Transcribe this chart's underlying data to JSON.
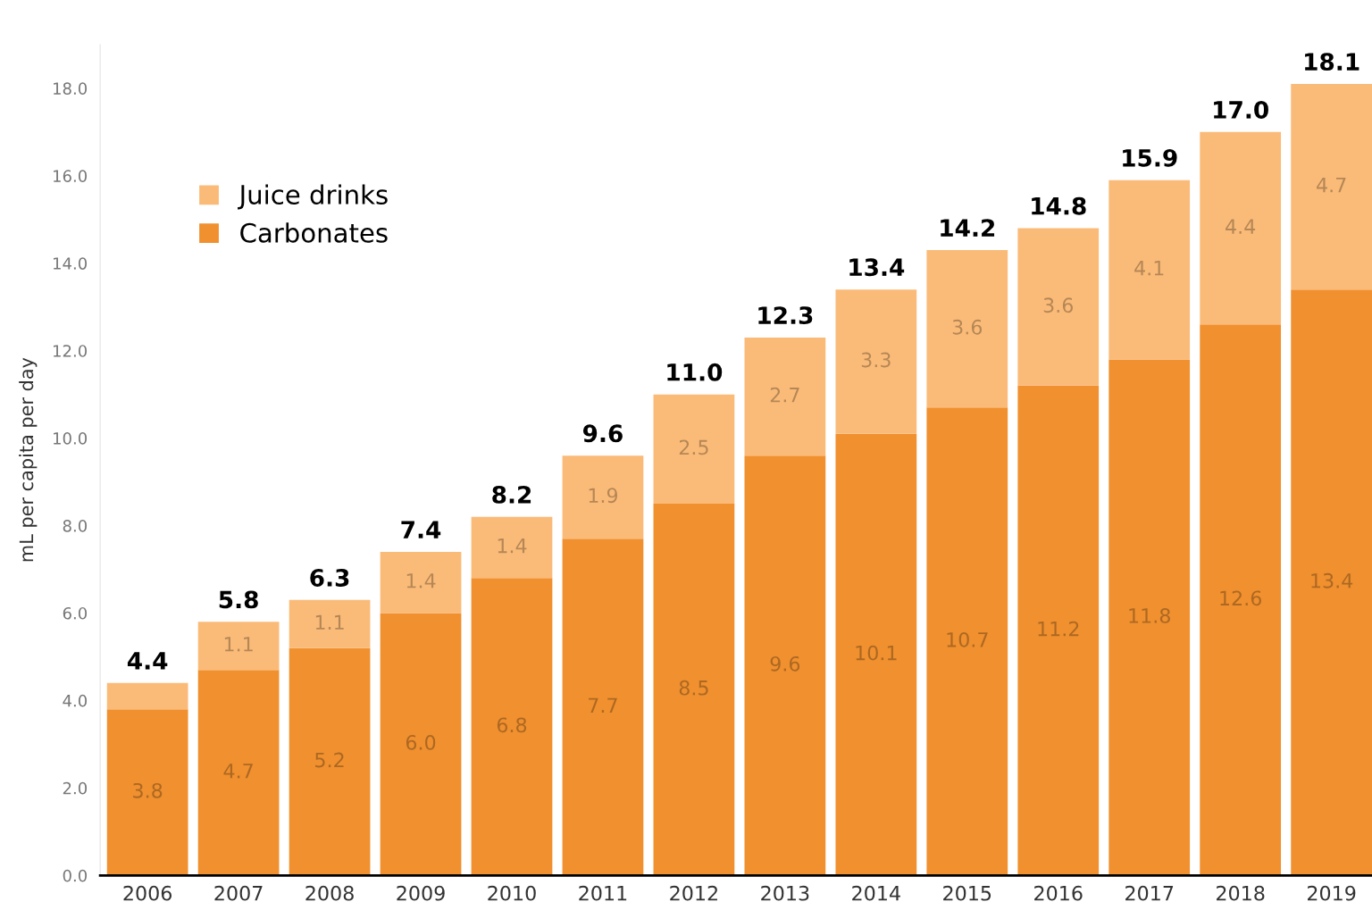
{
  "chart_data": {
    "type": "bar",
    "stacked": true,
    "ylabel": "mL per capita per day",
    "categories": [
      "2006",
      "2007",
      "2008",
      "2009",
      "2010",
      "2011",
      "2012",
      "2013",
      "2014",
      "2015",
      "2016",
      "2017",
      "2018",
      "2019"
    ],
    "series": [
      {
        "name": "Carbonates",
        "color": "#f0902f",
        "values": [
          3.8,
          4.7,
          5.2,
          6.0,
          6.8,
          7.7,
          8.5,
          9.6,
          10.1,
          10.7,
          11.2,
          11.8,
          12.6,
          13.4
        ],
        "value_labels": [
          "3.8",
          "4.7",
          "5.2",
          "6.0",
          "6.8",
          "7.7",
          "8.5",
          "9.6",
          "10.1",
          "10.7",
          "11.2",
          "11.8",
          "12.6",
          "13.4"
        ]
      },
      {
        "name": "Juice drinks",
        "color": "#fbbb78",
        "values": [
          0.6,
          1.1,
          1.1,
          1.4,
          1.4,
          1.9,
          2.5,
          2.7,
          3.3,
          3.6,
          3.6,
          4.1,
          4.4,
          4.7
        ],
        "value_labels": [
          null,
          "1.1",
          "1.1",
          "1.4",
          "1.4",
          "1.9",
          "2.5",
          "2.7",
          "3.3",
          "3.6",
          "3.6",
          "4.1",
          "4.4",
          "4.7"
        ]
      }
    ],
    "totals": [
      "4.4",
      "5.8",
      "6.3",
      "7.4",
      "8.2",
      "9.6",
      "11.0",
      "12.3",
      "13.4",
      "14.2",
      "14.8",
      "15.9",
      "17.0",
      "18.1"
    ],
    "ylim": [
      0,
      19
    ],
    "yticks": [
      {
        "value": 0,
        "label": "0.0"
      },
      {
        "value": 2,
        "label": "2.0"
      },
      {
        "value": 4,
        "label": "4.0"
      },
      {
        "value": 6,
        "label": "6.0"
      },
      {
        "value": 8,
        "label": "8.0"
      },
      {
        "value": 10,
        "label": "10.0"
      },
      {
        "value": 12,
        "label": "12.0"
      },
      {
        "value": 14,
        "label": "14.0"
      },
      {
        "value": 16,
        "label": "16.0"
      },
      {
        "value": 18,
        "label": "18.0"
      }
    ],
    "grid": false,
    "legend": "top left"
  }
}
